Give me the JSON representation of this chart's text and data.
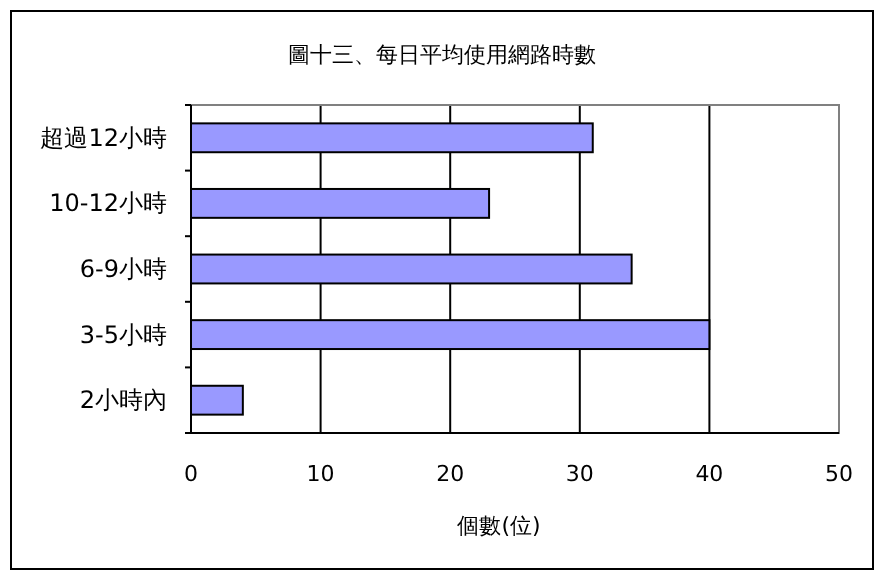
{
  "chart_data": {
    "type": "bar",
    "orientation": "horizontal",
    "title": "圖十三、每日平均使用網路時數",
    "xlabel": "個數(位)",
    "categories": [
      "超過12小時",
      "10-12小時",
      "6-9小時",
      "3-5小時",
      "2小時內"
    ],
    "values": [
      31,
      23,
      34,
      40,
      4
    ],
    "color": "#9999ff",
    "xlim": [
      0,
      50
    ],
    "xticks": [
      0,
      10,
      20,
      30,
      40,
      50
    ],
    "grid": "x"
  }
}
